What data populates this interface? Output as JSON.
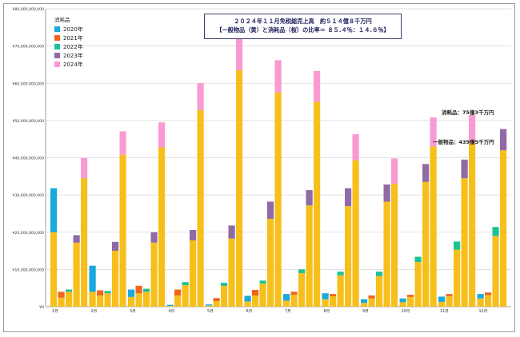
{
  "title": {
    "line1": "２０２４年１１月免税総売上高　約５１４億８千万円",
    "line2": "【一般物品（黄）と消耗品（桜）の比率＝ ８５.４％：１４.６％】"
  },
  "legend": {
    "title": "消耗品",
    "items": [
      {
        "label": "2020年",
        "color": "#1aa9dd"
      },
      {
        "label": "2021年",
        "color": "#f2651c"
      },
      {
        "label": "2022年",
        "color": "#1bc296"
      },
      {
        "label": "2023年",
        "color": "#8f6aa6"
      },
      {
        "label": "2024年",
        "color": "#f79bd2"
      }
    ]
  },
  "annotations": {
    "consumables": "消耗品：75億3千万円",
    "general": "一般物品：439億5千万円"
  },
  "colors": {
    "general": "#f7bf1b"
  },
  "chart_data": {
    "type": "bar",
    "stacked": true,
    "ylim": [
      0,
      80000000000
    ],
    "y_ticks": [
      "¥0",
      "¥10,000,000,000",
      "¥20,000,000,000",
      "¥30,000,000,000",
      "¥40,000,000,000",
      "¥50,000,000,000",
      "¥60,000,000,000",
      "¥70,000,000,000",
      "¥80,000,000,000"
    ],
    "categories": [
      "1月",
      "2月",
      "3月",
      "4月",
      "5月",
      "6月",
      "7月",
      "8月",
      "9月",
      "10月",
      "11月",
      "12月"
    ],
    "years": [
      "2020年",
      "2021年",
      "2022年",
      "2023年",
      "2024年"
    ],
    "general": [
      [
        20000000000,
        2400000000,
        4000000000,
        17200000000,
        34500000000
      ],
      [
        4000000000,
        3000000000,
        3600000000,
        15000000000,
        40800000000
      ],
      [
        2600000000,
        3600000000,
        4000000000,
        17200000000,
        42800000000
      ],
      [
        200000000,
        3000000000,
        5800000000,
        17800000000,
        52800000000
      ],
      [
        300000000,
        1500000000,
        5600000000,
        18300000000,
        63500000000
      ],
      [
        1400000000,
        3000000000,
        6200000000,
        23600000000,
        57500000000
      ],
      [
        1600000000,
        3200000000,
        9000000000,
        27200000000,
        55000000000
      ],
      [
        2000000000,
        2800000000,
        8400000000,
        27000000000,
        39300000000
      ],
      [
        1000000000,
        2200000000,
        8200000000,
        28200000000,
        33000000000
      ],
      [
        1200000000,
        2600000000,
        12000000000,
        33500000000,
        43000000000
      ],
      [
        1300000000,
        2800000000,
        15300000000,
        34500000000,
        43950000000
      ],
      [
        2200000000,
        3100000000,
        19000000000,
        42000000000,
        0
      ]
    ],
    "consumables": [
      [
        11800000000,
        1600000000,
        600000000,
        2000000000,
        5400000000
      ],
      [
        7000000000,
        1400000000,
        600000000,
        2400000000,
        6300000000
      ],
      [
        2000000000,
        2000000000,
        800000000,
        2800000000,
        6700000000
      ],
      [
        300000000,
        1600000000,
        800000000,
        2800000000,
        7200000000
      ],
      [
        300000000,
        800000000,
        800000000,
        3500000000,
        8400000000
      ],
      [
        1500000000,
        1500000000,
        800000000,
        4600000000,
        8700000000
      ],
      [
        1800000000,
        800000000,
        1000000000,
        4100000000,
        8300000000
      ],
      [
        1600000000,
        600000000,
        1000000000,
        4800000000,
        7000000000
      ],
      [
        1000000000,
        800000000,
        1200000000,
        4600000000,
        6800000000
      ],
      [
        1000000000,
        600000000,
        1400000000,
        4800000000,
        7800000000
      ],
      [
        1400000000,
        600000000,
        2200000000,
        5000000000,
        7530000000
      ],
      [
        1200000000,
        700000000,
        2400000000,
        5700000000,
        0
      ]
    ]
  }
}
